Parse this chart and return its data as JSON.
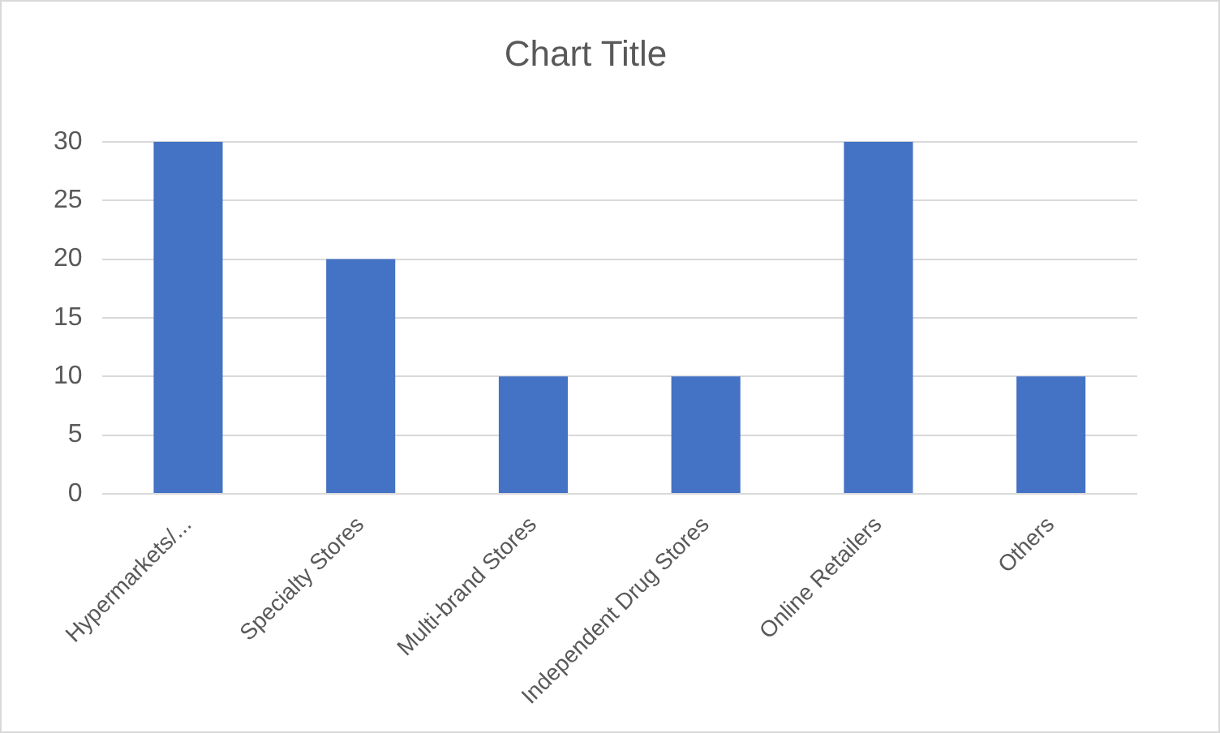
{
  "chart_data": {
    "type": "bar",
    "title": "Chart Title",
    "categories": [
      "Hypermarkets/...",
      "Specialty Stores",
      "Multi-brand Stores",
      "Independent Drug Stores",
      "Online Retailers",
      "Others"
    ],
    "values": [
      30,
      20,
      10,
      10,
      30,
      10
    ],
    "color": "#4472c4",
    "ylim": [
      0,
      30
    ],
    "yticks": [
      0,
      5,
      10,
      15,
      20,
      25,
      30
    ],
    "grid": "y",
    "legend": false
  }
}
